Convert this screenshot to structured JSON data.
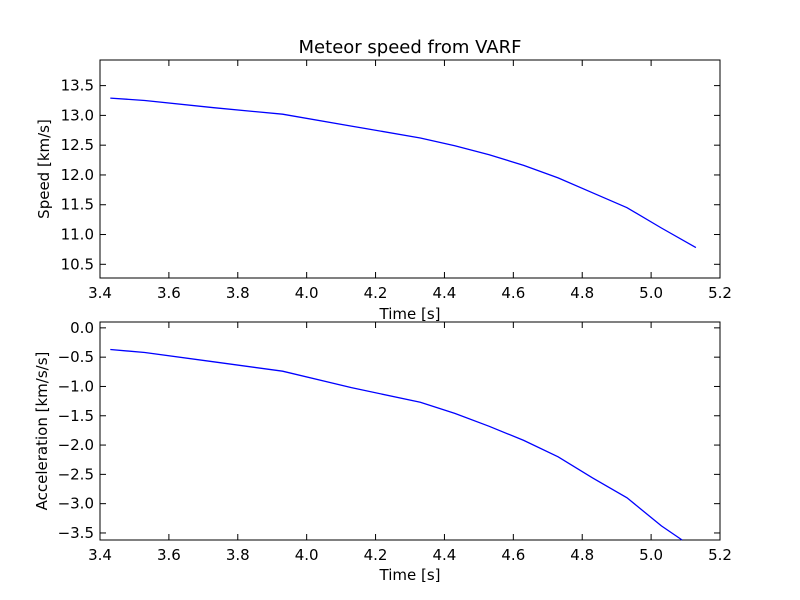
{
  "figure": {
    "title": "Meteor speed from  VARF"
  },
  "chart_data": [
    {
      "type": "line",
      "xlabel": "Time [s]",
      "ylabel": "Speed [km/s]",
      "xlim": [
        3.4,
        5.2
      ],
      "ylim": [
        10.27,
        13.93
      ],
      "x_ticks": [
        "3.4",
        "3.6",
        "3.8",
        "4.0",
        "4.2",
        "4.4",
        "4.6",
        "4.8",
        "5.0",
        "5.2"
      ],
      "y_ticks": [
        "10.5",
        "11.0",
        "11.5",
        "12.0",
        "12.5",
        "13.0",
        "13.5"
      ],
      "grid": false,
      "series": [
        {
          "color": "#0000ff",
          "x": [
            3.43,
            3.53,
            3.73,
            3.93,
            4.13,
            4.33,
            4.43,
            4.53,
            4.63,
            4.73,
            4.83,
            4.93,
            5.03,
            5.13
          ],
          "y": [
            13.29,
            13.25,
            13.13,
            13.02,
            12.82,
            12.62,
            12.49,
            12.34,
            12.16,
            11.95,
            11.7,
            11.45,
            11.11,
            10.78
          ]
        }
      ]
    },
    {
      "type": "line",
      "xlabel": "Time [s]",
      "ylabel": "Acceleration [km/s/s]",
      "xlim": [
        3.4,
        5.2
      ],
      "ylim": [
        -3.62,
        0.1
      ],
      "x_ticks": [
        "3.4",
        "3.6",
        "3.8",
        "4.0",
        "4.2",
        "4.4",
        "4.6",
        "4.8",
        "5.0",
        "5.2"
      ],
      "y_ticks": [
        "0.0",
        "−0.5",
        "−1.0",
        "−1.5",
        "−2.0",
        "−2.5",
        "−3.0",
        "−3.5"
      ],
      "grid": false,
      "series": [
        {
          "color": "#0000ff",
          "x": [
            3.43,
            3.53,
            3.73,
            3.93,
            4.13,
            4.33,
            4.43,
            4.53,
            4.63,
            4.73,
            4.83,
            4.93,
            5.03,
            5.09
          ],
          "y": [
            -0.37,
            -0.42,
            -0.58,
            -0.74,
            -1.02,
            -1.27,
            -1.46,
            -1.68,
            -1.92,
            -2.2,
            -2.56,
            -2.9,
            -3.38,
            -3.62
          ]
        }
      ]
    }
  ]
}
